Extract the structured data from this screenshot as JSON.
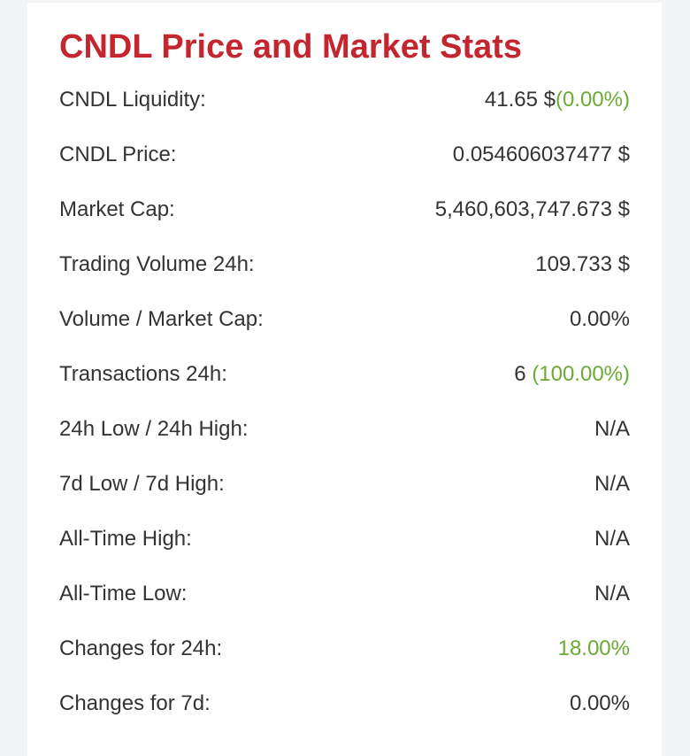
{
  "card": {
    "title": "CNDL Price and Market Stats"
  },
  "colors": {
    "title": "#c3262f",
    "positive": "#6aab34",
    "text": "#333333"
  },
  "stats": {
    "liquidity": {
      "label": "CNDL Liquidity:",
      "value": "41.65 $",
      "change": "(0.00%)"
    },
    "price": {
      "label": "CNDL Price:",
      "value": "0.054606037477 $"
    },
    "market_cap": {
      "label": "Market Cap:",
      "value": "5,460,603,747.673 $"
    },
    "volume_24h": {
      "label": "Trading Volume 24h:",
      "value": "109.733 $"
    },
    "volume_market_cap": {
      "label": "Volume / Market Cap:",
      "value": "0.00%"
    },
    "transactions_24h": {
      "label": "Transactions 24h:",
      "value": "6",
      "change": "(100.00%)"
    },
    "low_high_24h": {
      "label": "24h Low / 24h High:",
      "value": "N/A"
    },
    "low_high_7d": {
      "label": "7d Low / 7d High:",
      "value": "N/A"
    },
    "all_time_high": {
      "label": "All-Time High:",
      "value": "N/A"
    },
    "all_time_low": {
      "label": "All-Time Low:",
      "value": "N/A"
    },
    "changes_24h": {
      "label": "Changes for 24h:",
      "value": "18.00%"
    },
    "changes_7d": {
      "label": "Changes for 7d:",
      "value": "0.00%"
    }
  }
}
